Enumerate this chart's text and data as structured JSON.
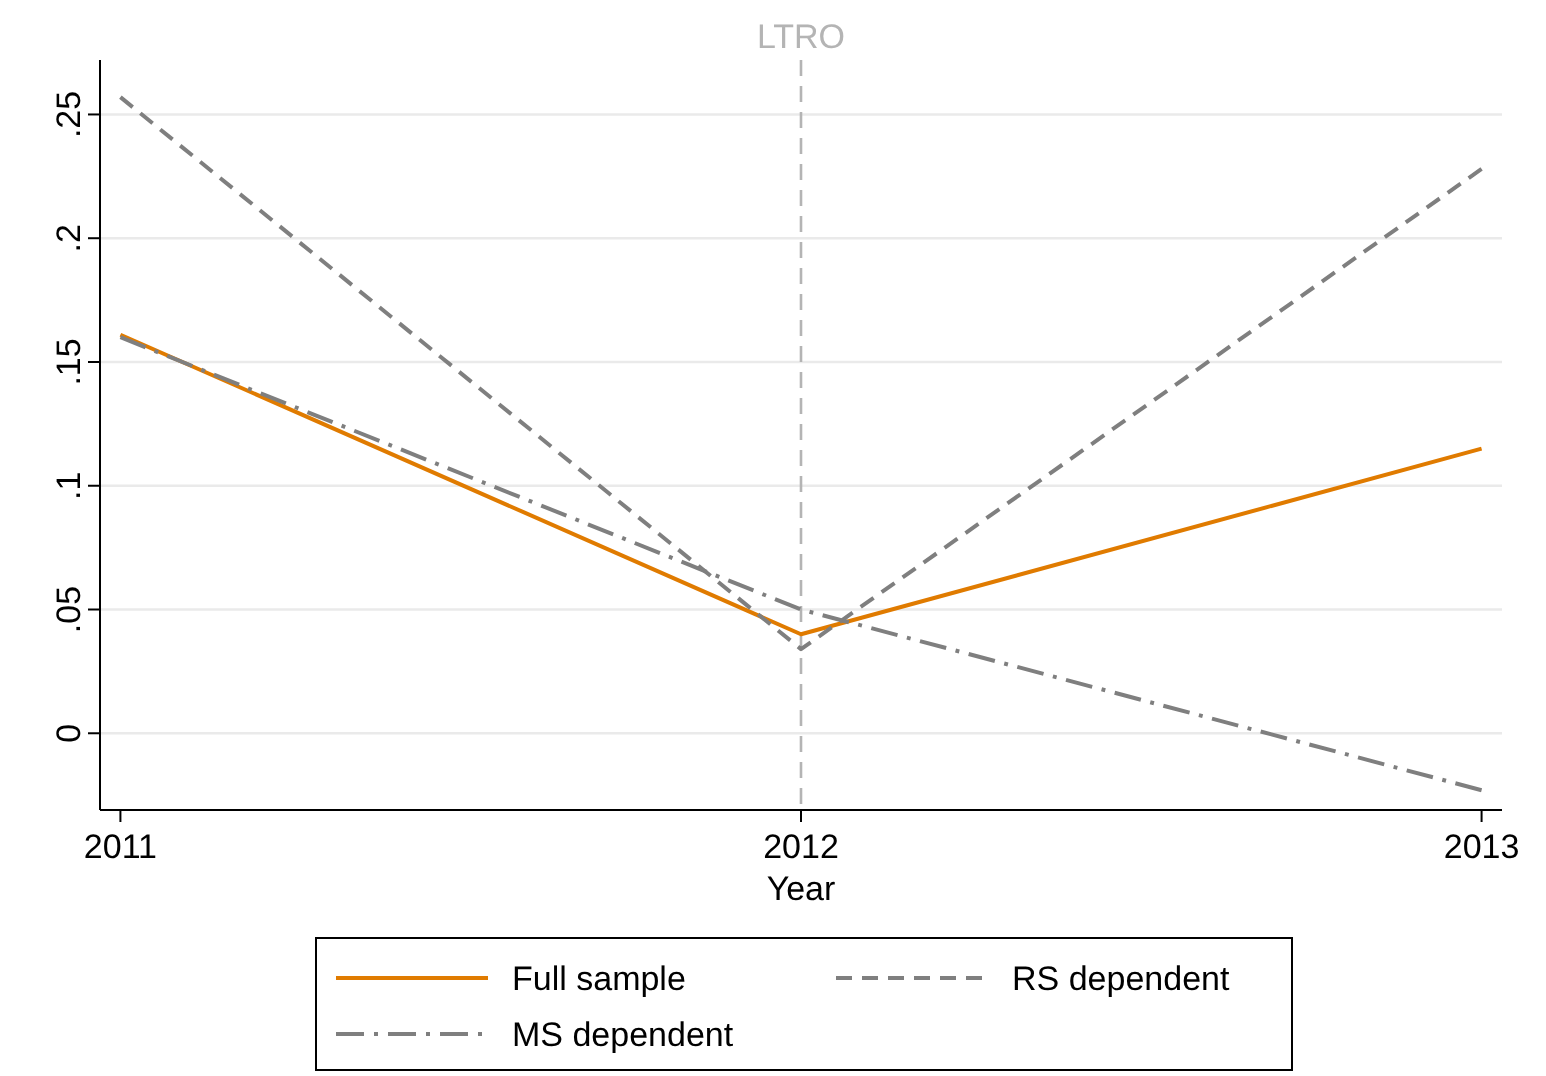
{
  "chart_data": {
    "type": "line",
    "xlabel": "Year",
    "x": [
      2011,
      2012,
      2013
    ],
    "xlim": [
      2010.97,
      2013.03
    ],
    "xticks": [
      2011,
      2012,
      2013
    ],
    "ylim": [
      -0.031,
      0.272
    ],
    "yticks": [
      {
        "value": 0,
        "label": "0"
      },
      {
        "value": 0.05,
        "label": ".05"
      },
      {
        "value": 0.1,
        "label": ".1"
      },
      {
        "value": 0.15,
        "label": ".15"
      },
      {
        "value": 0.2,
        "label": ".2"
      },
      {
        "value": 0.25,
        "label": ".25"
      }
    ],
    "grid": "y",
    "legend": "bottom",
    "series": [
      {
        "name": "Full sample",
        "color": "#e07b00",
        "values": [
          0.161,
          0.04,
          0.115
        ],
        "line_style": "solid"
      },
      {
        "name": "RS dependent",
        "color": "#7f7f7f",
        "values": [
          0.257,
          0.034,
          0.228
        ],
        "line_style": "dashed"
      },
      {
        "name": "MS dependent",
        "color": "#7f7f7f",
        "values": [
          0.16,
          0.05,
          -0.023
        ],
        "line_style": "dashdot"
      }
    ],
    "ref_lines": [
      {
        "axis": "x",
        "value": 2012,
        "label": "LTRO",
        "color": "#b4b4b4",
        "line_style": "dashed"
      }
    ]
  }
}
